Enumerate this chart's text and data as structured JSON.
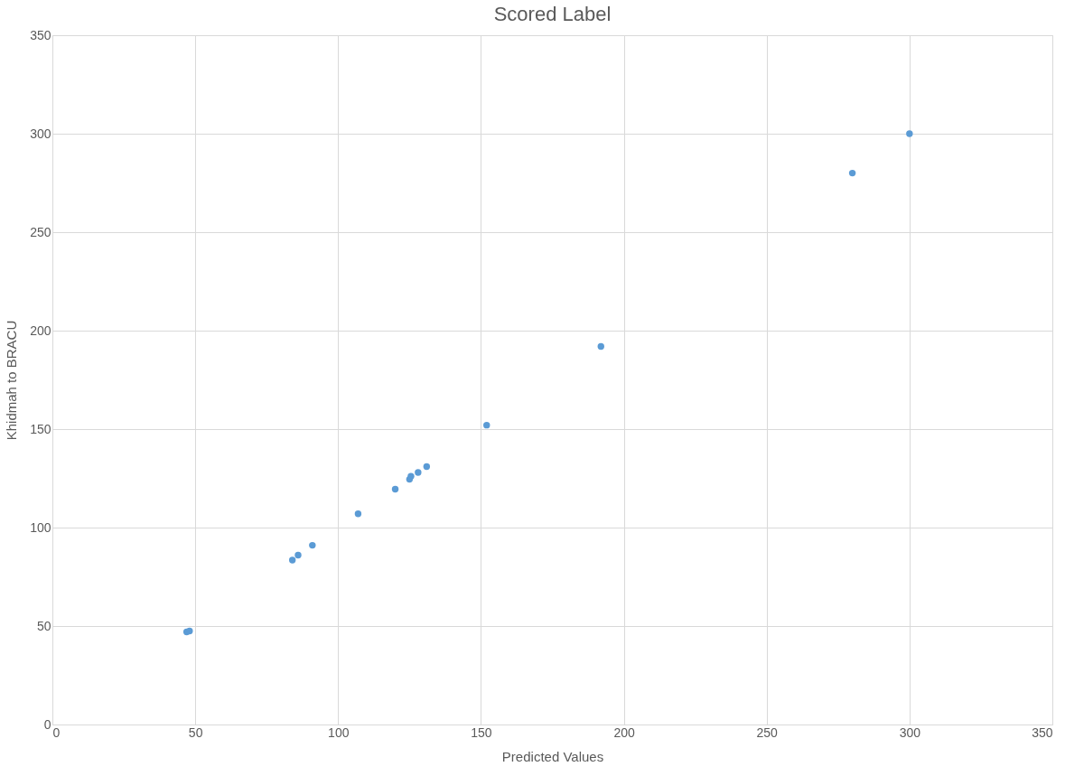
{
  "chart_data": {
    "type": "scatter",
    "title": "Scored Label",
    "xlabel": "Predicted Values",
    "ylabel": "Khidmah to BRACU",
    "x": [
      47,
      48,
      84,
      86,
      91,
      107,
      120,
      125,
      125.5,
      128,
      131,
      152,
      192,
      280,
      300
    ],
    "series": [
      {
        "color": "#5b9bd5",
        "values": [
          47,
          47.5,
          83.5,
          86,
          91,
          107,
          119.5,
          124.5,
          126,
          128,
          131,
          152,
          192,
          280,
          300
        ]
      }
    ],
    "xlim": [
      0,
      350
    ],
    "xticks": [
      0,
      50,
      100,
      150,
      200,
      250,
      300,
      350
    ],
    "ylim": [
      0,
      350
    ],
    "yticks": [
      0,
      50,
      100,
      150,
      200,
      250,
      300,
      350
    ],
    "grid": true,
    "marker": "circle",
    "legend": false
  }
}
